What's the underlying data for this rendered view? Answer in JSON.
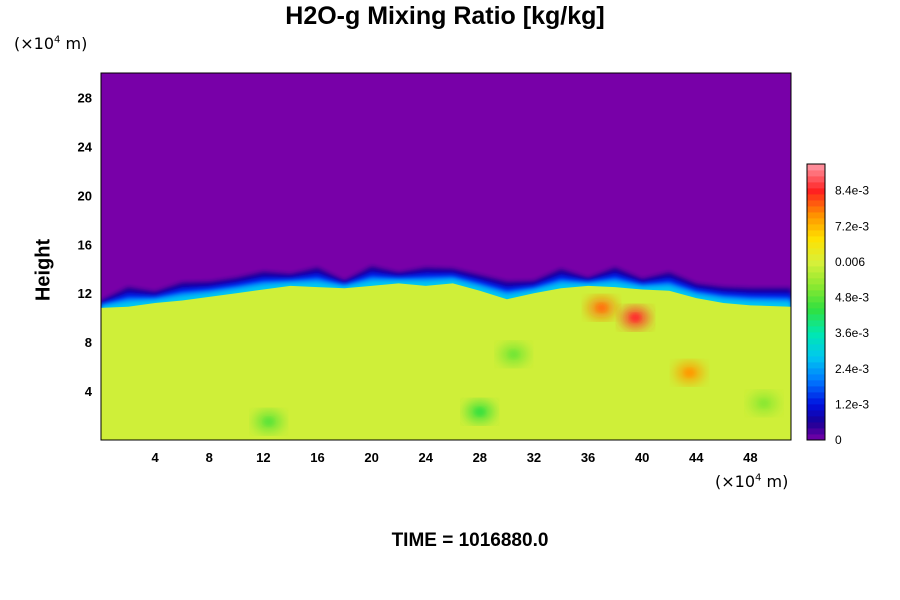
{
  "chart_data": {
    "type": "heatmap",
    "title": "H2O-g Mixing Ratio [kg/kg]",
    "ylabel": "Height",
    "xunit_prefix": "(×10",
    "xunit_exp": "4",
    "xunit_suffix": " m)",
    "yunit_prefix": "(×10",
    "yunit_exp": "4",
    "yunit_suffix": " m)",
    "x_ticks": [
      "4",
      "8",
      "12",
      "16",
      "20",
      "24",
      "28",
      "32",
      "36",
      "40",
      "44",
      "48"
    ],
    "y_ticks": [
      "4",
      "8",
      "12",
      "16",
      "20",
      "24",
      "28"
    ],
    "xlim": [
      0,
      51
    ],
    "ylim": [
      0,
      30
    ],
    "colorbar": {
      "ticks": [
        "8.4e-3",
        "7.2e-3",
        "0.006",
        "4.8e-3",
        "3.6e-3",
        "2.4e-3",
        "1.2e-3",
        "0"
      ],
      "range": [
        0,
        0.0093
      ]
    },
    "background_level": 0,
    "lower_layer_level": 0.0059,
    "interface_height": [
      [
        0,
        10.8
      ],
      [
        2,
        10.9
      ],
      [
        4,
        11.2
      ],
      [
        6,
        11.4
      ],
      [
        8,
        11.7
      ],
      [
        10,
        12.0
      ],
      [
        12,
        12.3
      ],
      [
        14,
        12.6
      ],
      [
        16,
        12.5
      ],
      [
        18,
        12.4
      ],
      [
        20,
        12.6
      ],
      [
        22,
        12.8
      ],
      [
        24,
        12.6
      ],
      [
        26,
        12.8
      ],
      [
        28,
        12.2
      ],
      [
        30,
        11.5
      ],
      [
        32,
        12.0
      ],
      [
        34,
        12.4
      ],
      [
        36,
        12.6
      ],
      [
        38,
        12.5
      ],
      [
        40,
        12.3
      ],
      [
        42,
        12.2
      ],
      [
        44,
        11.6
      ],
      [
        46,
        11.2
      ],
      [
        48,
        11.0
      ],
      [
        51,
        10.9
      ]
    ],
    "features": [
      {
        "x": 12.4,
        "y": 1.5,
        "value": 0.0048
      },
      {
        "x": 28.0,
        "y": 2.3,
        "value": 0.0045
      },
      {
        "x": 30.5,
        "y": 7.0,
        "value": 0.005
      },
      {
        "x": 39.5,
        "y": 10.0,
        "value": 0.0085
      },
      {
        "x": 43.5,
        "y": 5.5,
        "value": 0.0075
      },
      {
        "x": 37.0,
        "y": 10.8,
        "value": 0.0078
      },
      {
        "x": 49.0,
        "y": 3.0,
        "value": 0.0052
      }
    ]
  },
  "time_label": "TIME = 1016880.0",
  "colors": {
    "background": "#7800a8",
    "lower_layer": "#d4f23c",
    "frame": "#000000"
  }
}
